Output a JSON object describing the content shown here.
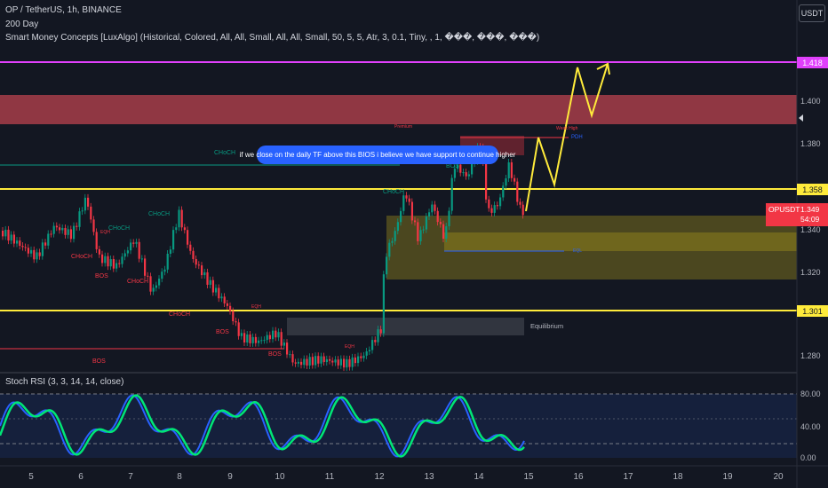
{
  "legend": {
    "line1": "OP / TetherUS, 1h, BINANCE",
    "line2": "200 Day",
    "line3": "Smart Money Concepts [LuxAlgo] (Historical, Colored, All, All, Small, All, All, Small, 50, 5, 5, Atr, 3, 0.1, Tiny, , 1, ���, ���, ���)"
  },
  "currency_button": "USDT",
  "price_axis": {
    "ticks": [
      "1.400",
      "1.380",
      "1.340",
      "1.320",
      "1.280"
    ],
    "badges": {
      "level_1418": "1.418",
      "level_1358": "1.358",
      "level_1301": "1.301"
    },
    "symbol_tag": {
      "symbol": "OPUSDT",
      "price": "1.349",
      "countdown": "54:09"
    }
  },
  "time_axis": [
    "5",
    "6",
    "7",
    "8",
    "9",
    "10",
    "11",
    "12",
    "13",
    "14",
    "15",
    "16",
    "17",
    "18",
    "19",
    "20"
  ],
  "annotation_bubble": "if we close on the daily TF above this BIOS i believe we have support to continue higher",
  "smc_labels": {
    "choch_1": "CHoCH",
    "choch_2": "CHoCH",
    "choch_3": "CHoCH",
    "choch_4": "CHoCH",
    "choch_5": "CHoCH",
    "choch_6": "CHoCH",
    "choch_7": "CHoCH",
    "bos_1": "BOS",
    "bos_2": "BOS",
    "bos_3": "BOS",
    "bos_4": "BOS",
    "bos_5": "BOS",
    "eqh_1": "EQH",
    "eqh_2": "EQH",
    "eqh_3": "EQH",
    "eql_1": "EQL",
    "equilibrium": "Equilibrium",
    "premium": "Premium",
    "weak_high": "Weak High",
    "pdh": "PDH"
  },
  "rsi": {
    "label": "Stoch RSI (3, 3, 14, 14, close)",
    "ticks": [
      "80.00",
      "40.00",
      "0.00"
    ]
  },
  "colors": {
    "background": "#131722",
    "premium_zone": "#f7525f",
    "yellow_level": "#ffeb3b",
    "magenta_level": "#e040fb",
    "bull": "#089981",
    "bear": "#f23645",
    "rsi_k": "#2962ff",
    "rsi_d": "#00e676"
  }
}
